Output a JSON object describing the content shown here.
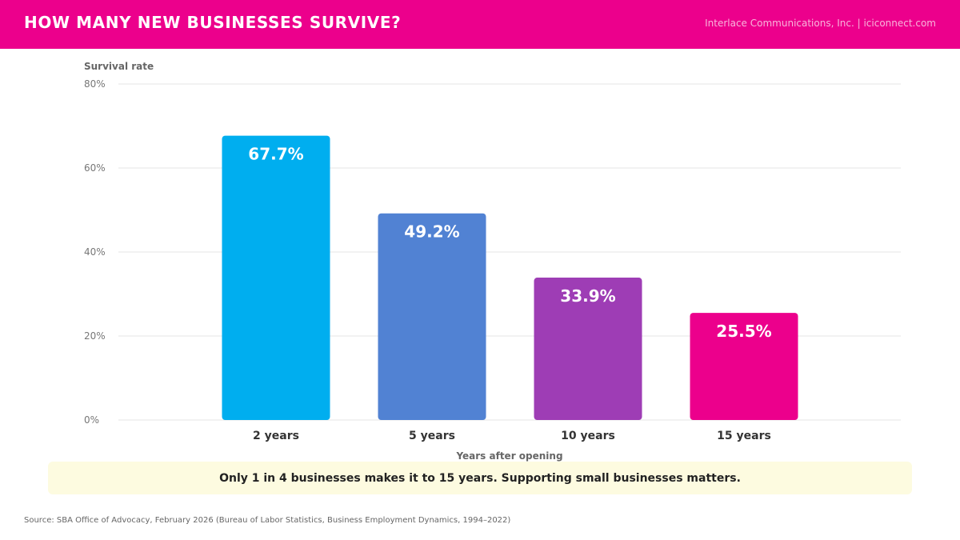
{
  "header": {
    "title": "HOW MANY NEW BUSINESSES SURVIVE?",
    "credit": "Interlace Communications, Inc. | iciconnect.com"
  },
  "colors": {
    "header_bg": "#ec008c",
    "bars": [
      "#00aeef",
      "#5182d3",
      "#9e3db5",
      "#ec008c"
    ],
    "callout_bg": "#fdfbe0"
  },
  "chart_data": {
    "type": "bar",
    "categories": [
      "2 years",
      "5 years",
      "10 years",
      "15 years"
    ],
    "values": [
      67.7,
      49.2,
      33.9,
      25.5
    ],
    "value_labels": [
      "67.7%",
      "49.2%",
      "33.9%",
      "25.5%"
    ],
    "ylabel": "Survival rate",
    "xlabel": "Years after opening",
    "ylim": [
      0,
      80
    ],
    "yticks": [
      0,
      20,
      40,
      60,
      80
    ],
    "ytick_labels": [
      "0%",
      "20%",
      "40%",
      "60%",
      "80%"
    ],
    "grid": true,
    "legend": "none"
  },
  "callout": {
    "text": "Only 1 in 4 businesses makes it to 15 years. Supporting small businesses matters."
  },
  "source": "Source: SBA Office of Advocacy, February 2026 (Bureau of Labor Statistics, Business Employment Dynamics, 1994–2022)"
}
